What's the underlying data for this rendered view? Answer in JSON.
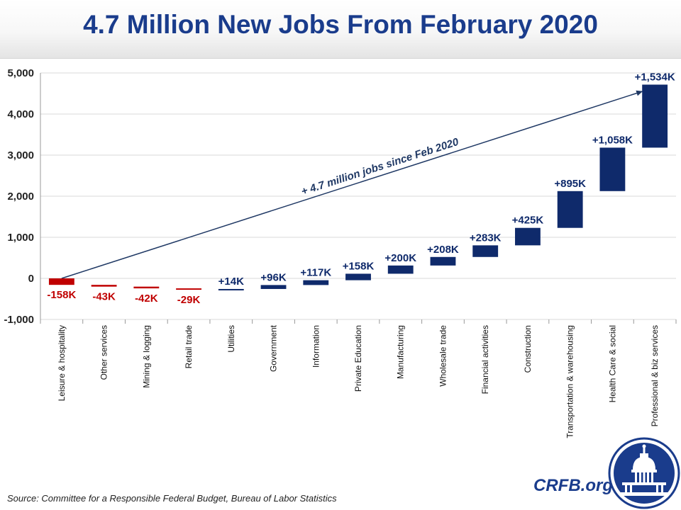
{
  "header": {
    "title": "4.7 Million New Jobs From February 2020"
  },
  "footer": {
    "source": "Source: Committee for a Responsible Federal Budget, Bureau of Labor Statistics",
    "brand": "CRFB.org"
  },
  "chart_data": {
    "type": "waterfall",
    "title": "4.7 Million New Jobs From February 2020",
    "xlabel": "",
    "ylabel": "",
    "ylim": [
      -1000,
      5000
    ],
    "yticks": [
      -1000,
      0,
      1000,
      2000,
      3000,
      4000,
      5000
    ],
    "ytick_labels": [
      "-1,000",
      "0",
      "1,000",
      "2,000",
      "3,000",
      "4,000",
      "5,000"
    ],
    "grid": true,
    "categories": [
      "Leisure & hospitality",
      "Other services",
      "Mining & logging",
      "Retail trade",
      "Utilities",
      "Government",
      "Information",
      "Private Education",
      "Manufacturing",
      "Wholesale trade",
      "Financial activities",
      "Construction",
      "Transportation & warehousing",
      "Health Care & social",
      "Professional & biz services"
    ],
    "values": [
      -158,
      -43,
      -42,
      -29,
      14,
      96,
      117,
      158,
      200,
      208,
      283,
      425,
      895,
      1058,
      1534
    ],
    "data_labels": [
      "-158K",
      "-43K",
      "-42K",
      "-29K",
      "+14K",
      "+96K",
      "+117K",
      "+158K",
      "+200K",
      "+208K",
      "+283K",
      "+425K",
      "+895K",
      "+1,058K",
      "+1,534K"
    ],
    "colors": {
      "negative": "#c00000",
      "positive": "#0f2a6b"
    },
    "annotation": {
      "text": "+ 4.7 million jobs since Feb 2020",
      "arrow_from": [
        0,
        0
      ],
      "arrow_to": [
        13.7,
        4550
      ]
    }
  },
  "colors": {
    "title": "#1a3c8c",
    "gridline": "#d9d9d9",
    "axis": "#999999",
    "arrow": "#1f3864"
  }
}
